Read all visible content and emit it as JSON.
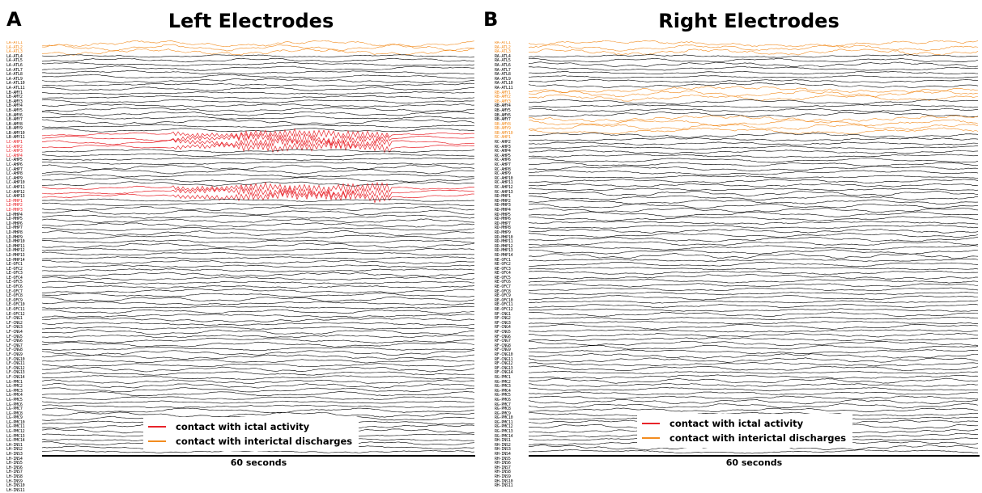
{
  "panels": [
    {
      "letter": "A",
      "title": "Left Electrodes",
      "time_label": "60 seconds",
      "channels": [
        "LA-ATL1",
        "LA-ATL2",
        "LA-ATL3",
        "LA-ATL4",
        "LA-ATL5",
        "LA-ATL6",
        "LA-ATL7",
        "LA-ATL8",
        "LA-ATL9",
        "LA-ATL10",
        "LA-ATL11",
        "LB-AMY1",
        "LB-AMY2",
        "LB-AMY3",
        "LB-AMY4",
        "LB-AMY5",
        "LB-AMY6",
        "LB-AMY7",
        "LB-AMY8",
        "LB-AMY9",
        "LB-AMY10",
        "LB-AMY11",
        "LC-AHP1",
        "LC-AHP2",
        "LC-AHP3",
        "LC-AHP4",
        "LC-AHP5",
        "LC-AHP6",
        "LC-AHP7",
        "LC-AHP8",
        "LC-AHP9",
        "LC-AHP10",
        "LC-AHP11",
        "LC-AHP12",
        "LC-AHP13",
        "LD-MHP1",
        "LD-MHP2",
        "LD-MHP3",
        "LD-MHP4",
        "LD-MHP5",
        "LD-MHP6",
        "LD-MHP7",
        "LD-MHP8",
        "LD-MHP9",
        "LD-MHP10",
        "LD-MHP11",
        "LD-MHP12",
        "LD-MHP13",
        "LD-MHP14",
        "LE-OFC1",
        "LE-OFC2",
        "LE-OFC3",
        "LE-OFC4",
        "LE-OFC5",
        "LE-OFC6",
        "LE-OFC7",
        "LE-OFC8",
        "LE-OFC9",
        "LE-OFC10",
        "LE-OFC11",
        "LE-OFC12",
        "LF-CNG1",
        "LF-CNG2",
        "LF-CNG3",
        "LF-CNG4",
        "LF-CNG5",
        "LF-CNG6",
        "LF-CNG7",
        "LF-CNG8",
        "LF-CNG9",
        "LF-CNG10",
        "LF-CNG11",
        "LF-CNG12",
        "LF-CNG13",
        "LF-CNG14",
        "LG-PMC1",
        "LG-PMC2",
        "LG-PMC3",
        "LG-PMC4",
        "LG-PMC5",
        "LG-PMC6",
        "LG-PMC7",
        "LG-PMC8",
        "LG-PMC9",
        "LG-PMC10",
        "LG-PMC11",
        "LG-PMC12",
        "LG-PMC13",
        "LG-PMC14",
        "LH-INS1",
        "LH-INS2",
        "LH-INS3",
        "LH-INS4",
        "LH-INS5",
        "LH-INS6",
        "LH-INS7",
        "LH-INS8",
        "LH-INS9",
        "LH-INS10",
        "LH-INS11"
      ],
      "ictal_channels": [
        22,
        23,
        24,
        25,
        35,
        36,
        37
      ],
      "interictal_channels": [
        0,
        1,
        2
      ]
    },
    {
      "letter": "B",
      "title": "Right Electrodes",
      "time_label": "60 seconds",
      "channels": [
        "RA-ATL1",
        "RA-ATL2",
        "RA-ATL3",
        "RA-ATL4",
        "RA-ATL5",
        "RA-ATL6",
        "RA-ATL7",
        "RA-ATL8",
        "RA-ATL9",
        "RA-ATL10",
        "RA-ATL11",
        "RB-AMY1",
        "RB-AMY2",
        "RB-AMY3",
        "RB-AMY4",
        "RB-AMY5",
        "RB-AMY6",
        "RB-AMY7",
        "RB-AMY8",
        "RB-AMY9",
        "RB-AMY10",
        "RC-AHP1",
        "RC-AHP2",
        "RC-AHP3",
        "RC-AHP4",
        "RC-AHP5",
        "RC-AHP6",
        "RC-AHP7",
        "RC-AHP8",
        "RC-AHP9",
        "RC-AHP10",
        "RC-AHP11",
        "RC-AHP12",
        "RC-AHP13",
        "RD-MHP1",
        "RD-MHP2",
        "RD-MHP3",
        "RD-MHP4",
        "RD-MHP5",
        "RD-MHP6",
        "RD-MHP7",
        "RD-MHP8",
        "RD-MHP9",
        "RD-MHP10",
        "RD-MHP11",
        "RD-MHP12",
        "RD-MHP13",
        "RD-MHP14",
        "RE-OFC1",
        "RE-OFC2",
        "RE-OFC3",
        "RE-OFC4",
        "RE-OFC5",
        "RE-OFC6",
        "RE-OFC7",
        "RE-OFC8",
        "RE-OFC9",
        "RE-OFC10",
        "RE-OFC11",
        "RE-OFC12",
        "RF-CNG1",
        "RF-CNG2",
        "RF-CNG3",
        "RF-CNG4",
        "RF-CNG5",
        "RF-CNG6",
        "RF-CNG7",
        "RF-CNG8",
        "RF-CNG9",
        "RF-CNG10",
        "RF-CNG11",
        "RF-CNG12",
        "RF-CNG13",
        "RF-CNG14",
        "RG-PMC1",
        "RG-PMC2",
        "RG-PMC3",
        "RG-PMC4",
        "RG-PMC5",
        "RG-PMC6",
        "RG-PMC7",
        "RG-PMC8",
        "RG-PMC9",
        "RG-PMC10",
        "RG-PMC11",
        "RG-PMC12",
        "RG-PMC13",
        "RG-PMC14",
        "RH-INS1",
        "RH-INS2",
        "RH-INS3",
        "RH-INS4",
        "RH-INS5",
        "RH-INS6",
        "RH-INS7",
        "RH-INS8",
        "RH-INS9",
        "RH-INS10",
        "RH-INS11"
      ],
      "ictal_channels": [],
      "interictal_channels": [
        0,
        1,
        2,
        11,
        12,
        13,
        18,
        19,
        20,
        21
      ]
    }
  ],
  "legend": {
    "ictal_label": "contact with ictal activity",
    "interictal_label": "contact with interictal discharges"
  },
  "colors": {
    "ictal": "#e8232a",
    "interictal": "#f28c1f",
    "normal": "#000000"
  }
}
